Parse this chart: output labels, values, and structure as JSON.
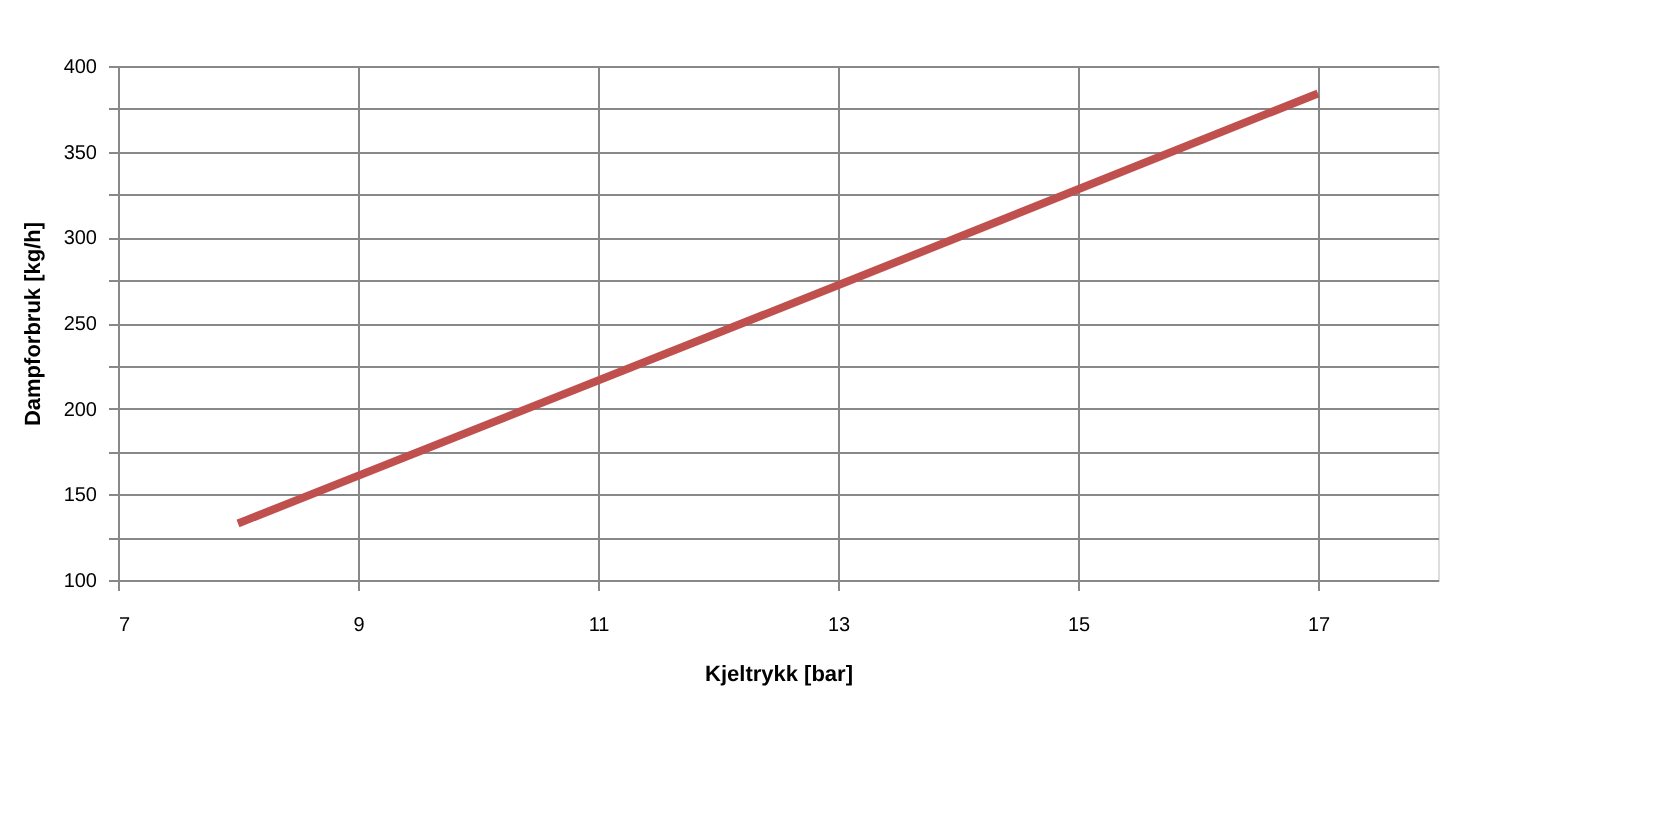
{
  "chart_data": {
    "type": "line",
    "xlabel": "Kjeltrykk [bar]",
    "ylabel": "Dampforbruk [kg/h]",
    "x": [
      8,
      13,
      17
    ],
    "series": [
      {
        "color": "#c0504d",
        "values": [
          133,
          272,
          384
        ]
      }
    ],
    "xlim": [
      7,
      18
    ],
    "xticks": [
      7,
      9,
      11,
      13,
      15,
      17
    ],
    "ylim": [
      100,
      400
    ],
    "yticks": [
      100,
      {
        "value": 125,
        "label": null
      },
      150,
      {
        "value": 175,
        "label": null
      },
      200,
      {
        "value": 225,
        "label": null
      },
      250,
      {
        "value": 275,
        "label": null
      },
      300,
      {
        "value": 325,
        "label": null
      },
      350,
      {
        "value": 375,
        "label": null
      },
      400
    ],
    "grid": true,
    "marker": "none",
    "line_style": "solid",
    "legend": false
  }
}
